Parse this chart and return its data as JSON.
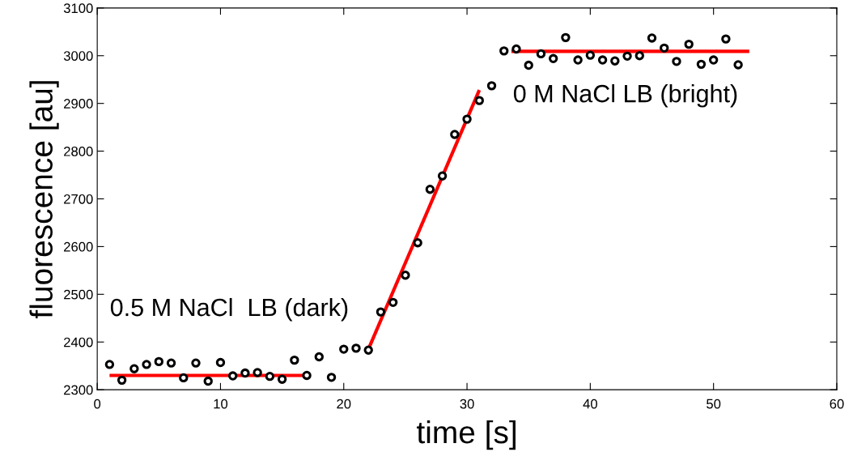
{
  "chart_data": {
    "type": "scatter",
    "xlabel": "time [s]",
    "ylabel": "fluorescence [au]",
    "xlim": [
      0,
      60
    ],
    "ylim": [
      2300,
      3100
    ],
    "xticks": [
      0,
      10,
      20,
      30,
      40,
      50,
      60
    ],
    "yticks": [
      2300,
      2400,
      2500,
      2600,
      2700,
      2800,
      2900,
      3000,
      3100
    ],
    "grid": false,
    "legend": false,
    "series": [
      {
        "marker": "circle",
        "color": "#000000",
        "x": [
          1,
          2,
          3,
          4,
          5,
          6,
          7,
          8,
          9,
          10,
          11,
          12,
          13,
          14,
          15,
          16,
          17,
          18,
          19,
          20,
          21,
          22,
          23,
          24,
          25,
          26,
          27,
          28,
          29,
          30,
          31,
          32,
          33,
          34,
          35,
          36,
          37,
          38,
          39,
          40,
          41,
          42,
          43,
          44,
          45,
          46,
          47,
          48,
          49,
          50,
          51,
          52
        ],
        "values": [
          2353,
          2320,
          2344,
          2353,
          2359,
          2356,
          2325,
          2356,
          2318,
          2357,
          2329,
          2335,
          2336,
          2328,
          2322,
          2362,
          2330,
          2369,
          2326,
          2385,
          2387,
          2383,
          2463,
          2483,
          2540,
          2608,
          2720,
          2748,
          2835,
          2867,
          2906,
          2937,
          3010,
          3014,
          2980,
          3004,
          2994,
          3038,
          2991,
          3001,
          2991,
          2989,
          2999,
          3000,
          3037,
          3016,
          2988,
          3024,
          2982,
          2991,
          3035,
          2981
        ]
      },
      {
        "type": "line",
        "color": "#ff0000",
        "line_style": "solid",
        "x": [
          1,
          17.3
        ],
        "values": [
          2330,
          2330
        ]
      },
      {
        "type": "line",
        "color": "#ff0000",
        "line_style": "solid",
        "x": [
          22,
          31
        ],
        "values": [
          2385,
          2928
        ]
      },
      {
        "type": "line",
        "color": "#ff0000",
        "line_style": "solid",
        "x": [
          33.6,
          52.9
        ],
        "values": [
          3009,
          3009
        ]
      }
    ],
    "annotations": [
      "0.5 M NaCl  LB (dark)",
      "0 M NaCl LB (bright)"
    ]
  }
}
